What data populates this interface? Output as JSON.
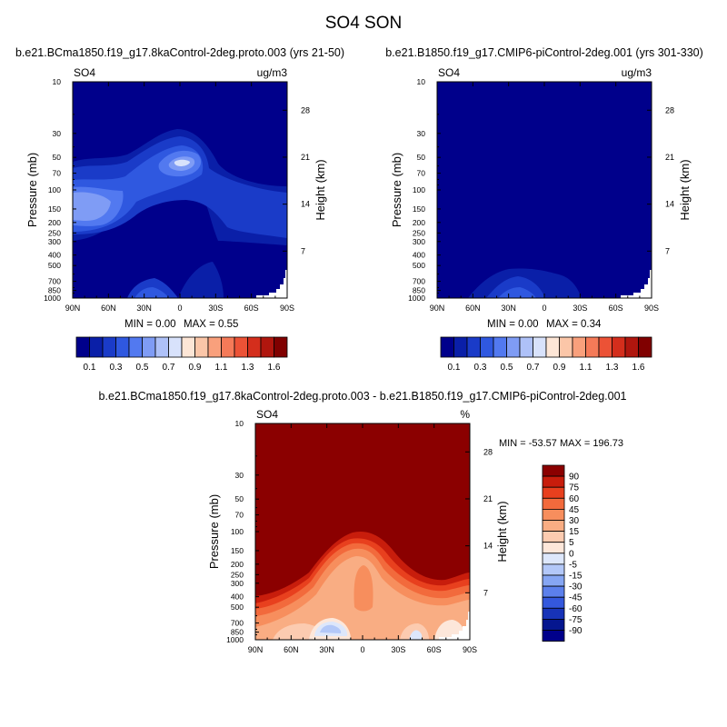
{
  "figure_title": "SO4 SON",
  "chart_data": [
    {
      "type": "heatmap",
      "panel": "left",
      "title": "b.e21.BCma1850.f19_g17.8kaControl-2deg.proto.003 (yrs 21-50)",
      "field_label": "SO4",
      "units": "ug/m3",
      "xlabel": "",
      "ylabel": "Pressure (mb)",
      "ylabel_right": "Height (km)",
      "x_ticks": [
        "90N",
        "60N",
        "30N",
        "0",
        "30S",
        "60S",
        "90S"
      ],
      "x_range": [
        90,
        -90
      ],
      "y_ticks": [
        "10",
        "30",
        "50",
        "70",
        "100",
        "150",
        "200",
        "250",
        "300",
        "400",
        "500",
        "700",
        "850",
        "1000"
      ],
      "y_range": [
        10,
        1000
      ],
      "height_ticks": [
        "28",
        "21",
        "14",
        "7"
      ],
      "min_label": "MIN =   0.00",
      "max_label": "MAX =   0.55",
      "min": 0.0,
      "max": 0.55,
      "features": [
        {
          "description": "elevated maximum",
          "lat": 0,
          "pressure": 55,
          "value": 0.55
        },
        {
          "description": "NH upper-troposphere band",
          "lat": 75,
          "pressure": 130,
          "value": 0.45
        },
        {
          "description": "SH plateau",
          "lat": -60,
          "pressure": 130,
          "value": 0.3
        }
      ],
      "colorbar": {
        "labels": [
          "0.1",
          "0.3",
          "0.5",
          "0.7",
          "0.9",
          "1.1",
          "1.3",
          "1.6"
        ],
        "colors": [
          "#00008b",
          "#0a1fa8",
          "#1a3bc8",
          "#2f58e0",
          "#5279f0",
          "#7f9cf5",
          "#aec1f8",
          "#d8e2fb",
          "#fde6d6",
          "#fbc6a8",
          "#f9a07c",
          "#f57a58",
          "#ec5236",
          "#d42e1c",
          "#b0160e",
          "#800000"
        ]
      }
    },
    {
      "type": "heatmap",
      "panel": "right",
      "title": "b.e21.B1850.f19_g17.CMIP6-piControl-2deg.001 (yrs 301-330)",
      "field_label": "SO4",
      "units": "ug/m3",
      "xlabel": "",
      "ylabel": "Pressure (mb)",
      "ylabel_right": "Height (km)",
      "x_ticks": [
        "90N",
        "60N",
        "30N",
        "0",
        "30S",
        "60S",
        "90S"
      ],
      "x_range": [
        90,
        -90
      ],
      "y_ticks": [
        "10",
        "30",
        "50",
        "70",
        "100",
        "150",
        "200",
        "250",
        "300",
        "400",
        "500",
        "700",
        "850",
        "1000"
      ],
      "y_range": [
        10,
        1000
      ],
      "height_ticks": [
        "28",
        "21",
        "14",
        "7"
      ],
      "min_label": "MIN =   0.00",
      "max_label": "MAX =   0.34",
      "min": 0.0,
      "max": 0.34,
      "features": [
        {
          "description": "near-surface maximum",
          "lat": 20,
          "pressure": 850,
          "value": 0.34
        }
      ],
      "colorbar": {
        "labels": [
          "0.1",
          "0.3",
          "0.5",
          "0.7",
          "0.9",
          "1.1",
          "1.3",
          "1.6"
        ],
        "colors": [
          "#00008b",
          "#0a1fa8",
          "#1a3bc8",
          "#2f58e0",
          "#5279f0",
          "#7f9cf5",
          "#aec1f8",
          "#d8e2fb",
          "#fde6d6",
          "#fbc6a8",
          "#f9a07c",
          "#f57a58",
          "#ec5236",
          "#d42e1c",
          "#b0160e",
          "#800000"
        ]
      }
    },
    {
      "type": "heatmap",
      "panel": "difference",
      "title": "b.e21.BCma1850.f19_g17.8kaControl-2deg.proto.003 - b.e21.B1850.f19_g17.CMIP6-piControl-2deg.001",
      "field_label": "SO4",
      "units": "%",
      "xlabel": "",
      "ylabel": "Pressure (mb)",
      "ylabel_right": "Height (km)",
      "x_ticks": [
        "90N",
        "60N",
        "30N",
        "0",
        "30S",
        "60S",
        "90S"
      ],
      "x_range": [
        90,
        -90
      ],
      "y_ticks": [
        "10",
        "30",
        "50",
        "70",
        "100",
        "150",
        "200",
        "250",
        "300",
        "400",
        "500",
        "700",
        "850",
        "1000"
      ],
      "y_range": [
        10,
        1000
      ],
      "height_ticks": [
        "28",
        "21",
        "14",
        "7"
      ],
      "minmax_label": "MIN = -53.57   MAX = 196.73",
      "min": -53.57,
      "max": 196.73,
      "colorbar": {
        "labels": [
          "90",
          "75",
          "60",
          "45",
          "30",
          "15",
          "5",
          "0",
          "-5",
          "-15",
          "-30",
          "-45",
          "-60",
          "-75",
          "-90"
        ],
        "colors": [
          "#8b0000",
          "#c81d0c",
          "#e8401e",
          "#f26a3c",
          "#f78e5d",
          "#f9ad83",
          "#fccbb0",
          "#fde7da",
          "#dde7fb",
          "#b3c8f8",
          "#86a6f3",
          "#5c80ec",
          "#3458dd",
          "#1733b8",
          "#05168f",
          "#00008b"
        ]
      }
    }
  ]
}
